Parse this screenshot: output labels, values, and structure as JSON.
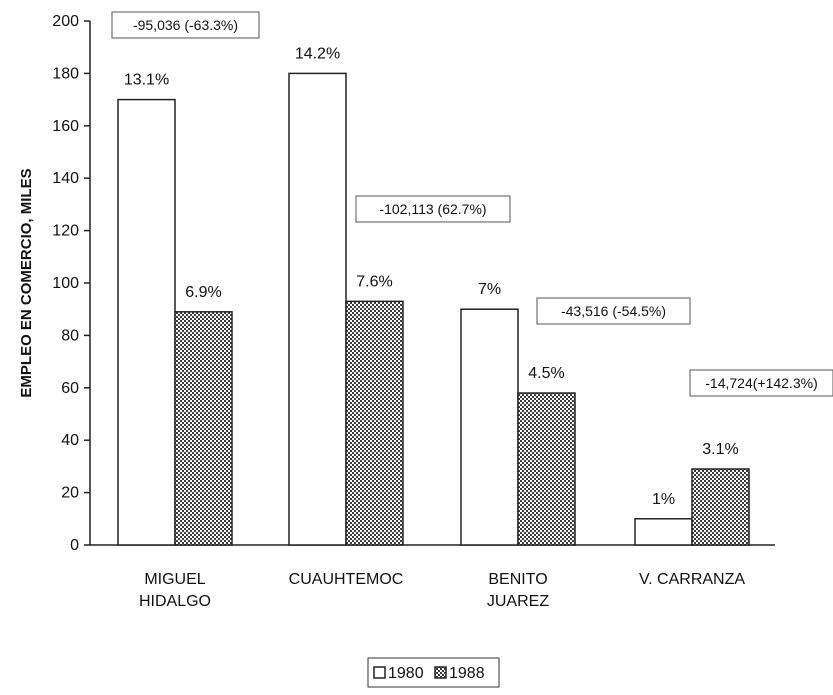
{
  "chart_data": {
    "type": "bar",
    "ylabel": "EMPLEO EN COMERCIO, MILES",
    "ylim": [
      0,
      200
    ],
    "yticks": [
      0,
      20,
      40,
      60,
      80,
      100,
      120,
      140,
      160,
      180,
      200
    ],
    "grid": false,
    "legend_position": "bottom-center",
    "categories": [
      [
        "MIGUEL",
        "HIDALGO"
      ],
      [
        "CUAUHTEMOC"
      ],
      [
        "BENITO",
        "JUAREZ"
      ],
      [
        "V. CARRANZA"
      ]
    ],
    "series": [
      {
        "name": "1980",
        "values": [
          170,
          180,
          90,
          10
        ],
        "labels": [
          "13.1%",
          "14.2%",
          "7%",
          "1%"
        ],
        "color": "#ffffff",
        "pattern": "none"
      },
      {
        "name": "1988",
        "values": [
          89,
          93,
          58,
          29
        ],
        "labels": [
          "6.9%",
          "7.6%",
          "4.5%",
          "3.1%"
        ],
        "color": "#6a6a6a",
        "pattern": "crosshatch"
      }
    ],
    "annotations": [
      "-95,036 (-63.3%)",
      "-102,113 (62.7%)",
      "-43,516 (-54.5%)",
      "-14,724(+142.3%)"
    ]
  }
}
